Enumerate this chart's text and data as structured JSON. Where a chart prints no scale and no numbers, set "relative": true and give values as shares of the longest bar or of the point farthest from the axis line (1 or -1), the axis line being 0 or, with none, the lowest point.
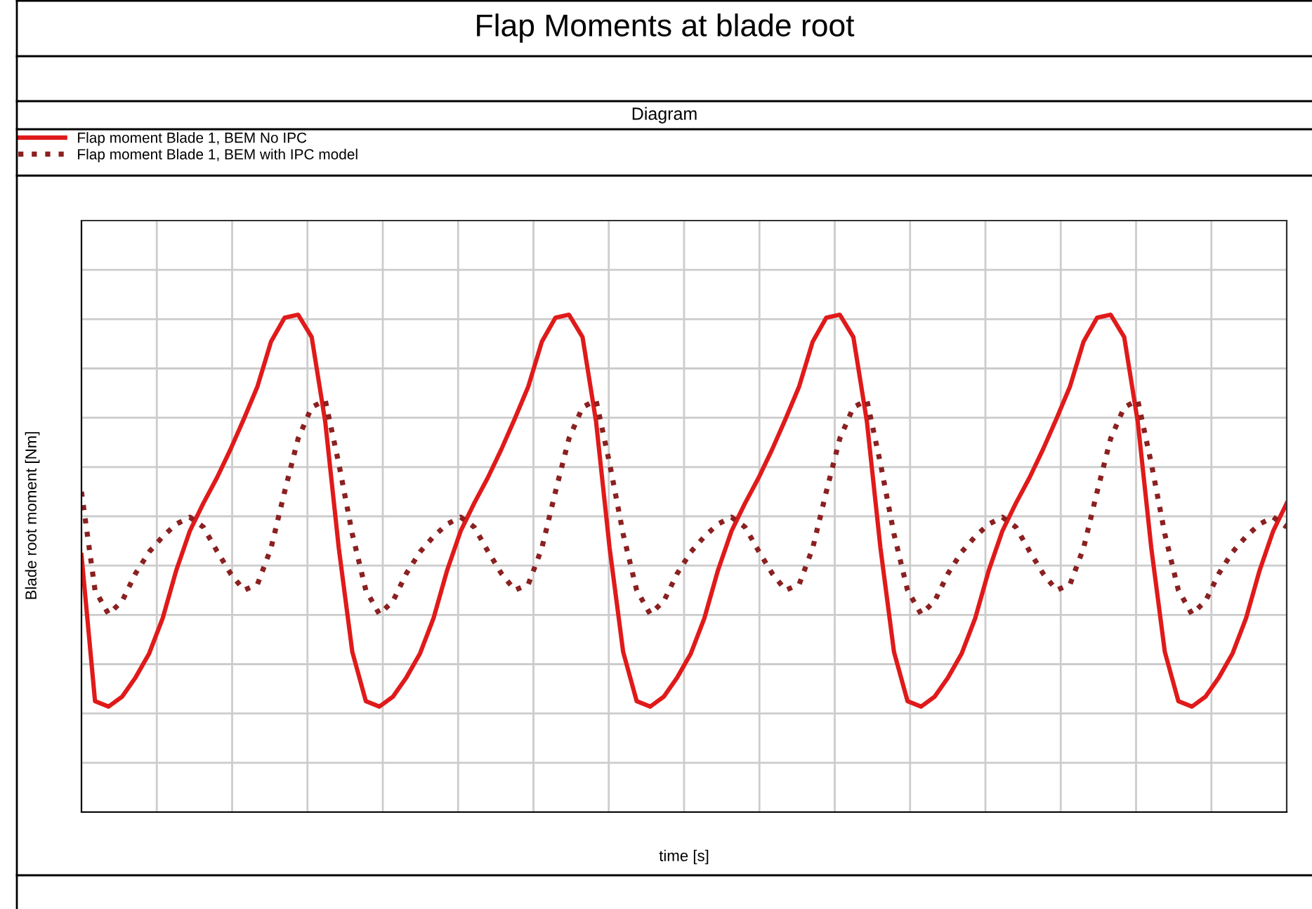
{
  "chart_data": {
    "type": "line",
    "title": "Flap Moments at blade root",
    "subtitle": "Diagram",
    "xlabel": "time [s]",
    "ylabel": "Blade root moment [Nm]",
    "relative": true,
    "grid": true,
    "legend": "top left",
    "marker": "none",
    "categories": [
      null,
      null,
      null,
      null,
      null,
      null,
      null,
      null,
      null,
      null,
      null,
      null,
      null,
      null,
      null,
      null,
      null,
      null,
      null,
      null,
      null,
      null,
      null,
      null,
      null,
      null,
      null,
      null,
      null,
      null,
      null,
      null,
      null,
      null,
      null,
      null,
      null,
      null,
      null,
      null,
      null,
      null,
      null,
      null,
      null,
      null,
      null,
      null,
      null,
      null,
      null,
      null,
      null,
      null,
      null,
      null,
      null,
      null,
      null,
      null,
      null,
      null,
      null,
      null,
      null,
      null,
      null,
      null,
      null,
      null,
      null,
      null,
      null,
      null,
      null,
      null,
      null,
      null,
      null,
      null,
      null,
      null,
      null,
      null,
      null,
      null,
      null,
      null,
      null,
      null
    ],
    "series": [
      {
        "name": "Flap moment Blade 1, BEM No IPC",
        "color": "#e01a1a",
        "line_style": "solid",
        "values": [
          0.517,
          0.223,
          0.212,
          0.232,
          0.271,
          0.319,
          0.39,
          0.486,
          0.565,
          0.621,
          0.672,
          0.729,
          0.791,
          0.856,
          0.946,
          0.994,
          1.0,
          0.955,
          0.785,
          0.531,
          0.322,
          0.223,
          0.212,
          0.232,
          0.271,
          0.319,
          0.39,
          0.486,
          0.565,
          0.621,
          0.672,
          0.729,
          0.791,
          0.856,
          0.946,
          0.994,
          1.0,
          0.955,
          0.785,
          0.531,
          0.322,
          0.223,
          0.212,
          0.232,
          0.271,
          0.319,
          0.39,
          0.486,
          0.565,
          0.621,
          0.672,
          0.729,
          0.791,
          0.856,
          0.946,
          0.994,
          1.0,
          0.955,
          0.785,
          0.531,
          0.322,
          0.223,
          0.212,
          0.232,
          0.271,
          0.319,
          0.39,
          0.486,
          0.565,
          0.621,
          0.672,
          0.729,
          0.791,
          0.856,
          0.946,
          0.994,
          1.0,
          0.955,
          0.785,
          0.531,
          0.322,
          0.223,
          0.212,
          0.232,
          0.271,
          0.319,
          0.39,
          0.486,
          0.565,
          0.621
        ]
      },
      {
        "name": "Flap moment Blade 1, BEM with IPC model",
        "color": "#8b2020",
        "line_style": "dotted",
        "values": [
          0.644,
          0.446,
          0.398,
          0.424,
          0.48,
          0.523,
          0.554,
          0.579,
          0.593,
          0.573,
          0.525,
          0.48,
          0.446,
          0.458,
          0.531,
          0.644,
          0.751,
          0.814,
          0.828,
          0.701,
          0.559,
          0.446,
          0.398,
          0.424,
          0.48,
          0.523,
          0.554,
          0.579,
          0.593,
          0.573,
          0.525,
          0.48,
          0.446,
          0.458,
          0.531,
          0.644,
          0.751,
          0.814,
          0.828,
          0.701,
          0.559,
          0.446,
          0.398,
          0.424,
          0.48,
          0.523,
          0.554,
          0.579,
          0.593,
          0.573,
          0.525,
          0.48,
          0.446,
          0.458,
          0.531,
          0.644,
          0.751,
          0.814,
          0.828,
          0.701,
          0.559,
          0.446,
          0.398,
          0.424,
          0.48,
          0.523,
          0.554,
          0.579,
          0.593,
          0.573,
          0.525,
          0.48,
          0.446,
          0.458,
          0.531,
          0.644,
          0.751,
          0.814,
          0.828,
          0.701,
          0.559,
          0.446,
          0.398,
          0.424,
          0.48,
          0.523,
          0.554,
          0.579,
          0.593,
          0.573
        ]
      }
    ]
  }
}
